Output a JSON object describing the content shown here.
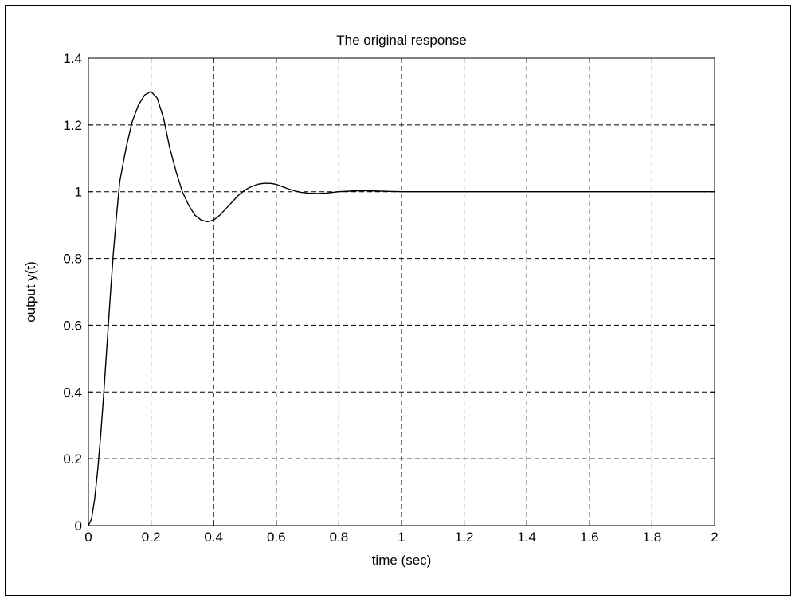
{
  "chart_data": {
    "type": "line",
    "title": "The original response",
    "xlabel": "time (sec)",
    "ylabel": "output y(t)",
    "xlim": [
      0,
      2
    ],
    "ylim": [
      0,
      1.4
    ],
    "xticks": [
      "0",
      "0.2",
      "0.4",
      "0.6",
      "0.8",
      "1",
      "1.2",
      "1.4",
      "1.6",
      "1.8",
      "2"
    ],
    "yticks": [
      "0",
      "0.2",
      "0.4",
      "0.6",
      "0.8",
      "1",
      "1.2",
      "1.4"
    ],
    "grid": true,
    "line_color": "#000000",
    "series": [
      {
        "x": [
          0,
          0.01,
          0.02,
          0.03,
          0.04,
          0.05,
          0.06,
          0.07,
          0.08,
          0.09,
          0.1,
          0.12,
          0.14,
          0.16,
          0.18,
          0.2,
          0.22,
          0.24,
          0.26,
          0.28,
          0.3,
          0.32,
          0.34,
          0.36,
          0.38,
          0.4,
          0.42,
          0.44,
          0.46,
          0.48,
          0.5,
          0.52,
          0.54,
          0.56,
          0.58,
          0.6,
          0.62,
          0.64,
          0.66,
          0.68,
          0.7,
          0.72,
          0.74,
          0.76,
          0.78,
          0.8,
          0.84,
          0.88,
          0.92,
          0.96,
          1.0,
          1.04,
          1.08,
          1.12,
          1.2,
          1.4,
          1.6,
          1.8,
          2.0
        ],
        "y": [
          0,
          0.02,
          0.08,
          0.17,
          0.28,
          0.41,
          0.55,
          0.69,
          0.82,
          0.93,
          1.03,
          1.13,
          1.21,
          1.26,
          1.29,
          1.3,
          1.28,
          1.22,
          1.13,
          1.06,
          1.0,
          0.96,
          0.93,
          0.915,
          0.91,
          0.915,
          0.93,
          0.95,
          0.97,
          0.99,
          1.005,
          1.015,
          1.022,
          1.025,
          1.025,
          1.022,
          1.015,
          1.008,
          1.002,
          0.998,
          0.996,
          0.995,
          0.995,
          0.996,
          0.998,
          1.0,
          1.002,
          1.003,
          1.002,
          1.001,
          1.0,
          1.0,
          1.0,
          1.0,
          1.0,
          1.0,
          1.0,
          1.0,
          1.0
        ]
      }
    ]
  }
}
